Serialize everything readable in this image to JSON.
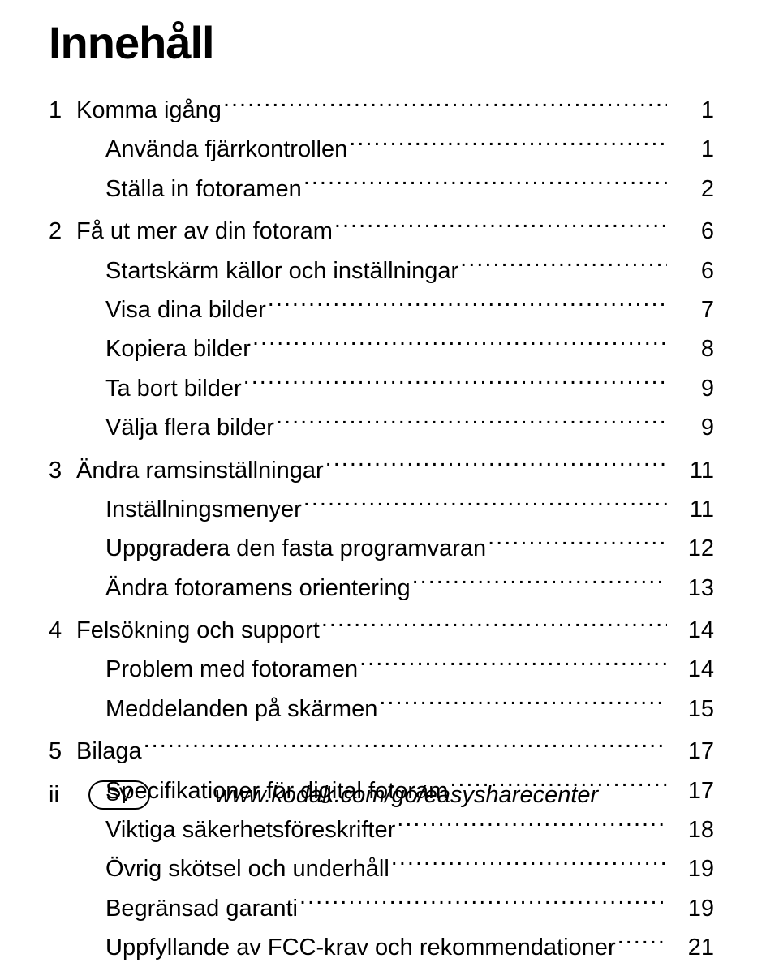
{
  "title": "Innehåll",
  "chapters": [
    {
      "num": "1",
      "label": "Komma igång",
      "page": "1",
      "subs": [
        {
          "label": "Använda fjärrkontrollen",
          "page": "1"
        },
        {
          "label": "Ställa in fotoramen",
          "page": "2"
        }
      ]
    },
    {
      "num": "2",
      "label": "Få ut mer av din fotoram",
      "page": "6",
      "subs": [
        {
          "label": "Startskärm källor och inställningar",
          "page": "6"
        },
        {
          "label": "Visa dina bilder",
          "page": "7"
        },
        {
          "label": "Kopiera bilder",
          "page": "8"
        },
        {
          "label": "Ta bort bilder",
          "page": "9"
        },
        {
          "label": "Välja flera bilder",
          "page": "9"
        }
      ]
    },
    {
      "num": "3",
      "label": "Ändra ramsinställningar",
      "page": "11",
      "subs": [
        {
          "label": "Inställningsmenyer",
          "page": "11"
        },
        {
          "label": "Uppgradera den fasta programvaran",
          "page": "12"
        },
        {
          "label": "Ändra fotoramens orientering",
          "page": "13"
        }
      ]
    },
    {
      "num": "4",
      "label": "Felsökning och support",
      "page": "14",
      "subs": [
        {
          "label": "Problem med fotoramen",
          "page": "14"
        },
        {
          "label": "Meddelanden på skärmen",
          "page": "15"
        }
      ]
    },
    {
      "num": "5",
      "label": "Bilaga",
      "page": "17",
      "subs": [
        {
          "label": "Specifikationer för digital fotoram",
          "page": "17"
        },
        {
          "label": "Viktiga säkerhetsföreskrifter",
          "page": "18"
        },
        {
          "label": "Övrig skötsel och underhåll",
          "page": "19"
        },
        {
          "label": "Begränsad garanti",
          "page": "19"
        },
        {
          "label": "Uppfyllande av FCC-krav och rekommendationer",
          "page": "21"
        }
      ]
    }
  ],
  "footer": {
    "page_num": "ii",
    "lang": "SV",
    "url": "www.kodak.com/go/easysharecenter"
  },
  "colors": {
    "text": "#000000",
    "background": "#ffffff"
  },
  "typography": {
    "title_fontsize": 56,
    "body_fontsize": 29,
    "footer_fontsize": 29,
    "pill_fontsize": 24
  }
}
